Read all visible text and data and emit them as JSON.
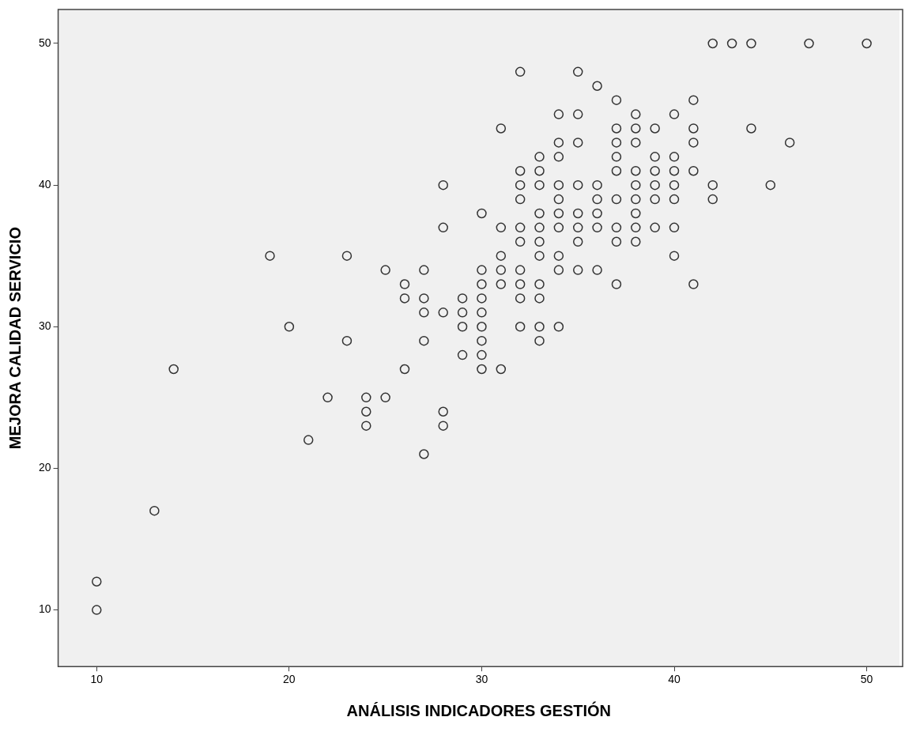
{
  "chart_data": {
    "type": "scatter",
    "xlabel": "ANÁLISIS INDICADORES GESTIÓN",
    "ylabel": "MEJORA CALIDAD SERVICIO",
    "xlim": [
      8,
      51.7
    ],
    "ylim": [
      6,
      52.4
    ],
    "xticks": [
      10,
      20,
      30,
      40,
      50
    ],
    "yticks": [
      10,
      20,
      30,
      40,
      50
    ],
    "grid": false,
    "legend": false,
    "marker": "circle",
    "series": [
      {
        "color": "#333333",
        "x": [
          10,
          10,
          13,
          14,
          19,
          20,
          21,
          22,
          23,
          23,
          24,
          24,
          24,
          25,
          25,
          26,
          26,
          26,
          27,
          27,
          27,
          27,
          27,
          28,
          28,
          28,
          28,
          28,
          29,
          29,
          29,
          29,
          30,
          30,
          30,
          30,
          30,
          30,
          30,
          30,
          30,
          31,
          31,
          31,
          31,
          31,
          31,
          32,
          32,
          32,
          32,
          32,
          32,
          32,
          32,
          32,
          32,
          33,
          33,
          33,
          33,
          33,
          33,
          33,
          33,
          33,
          33,
          33,
          34,
          34,
          34,
          34,
          34,
          34,
          34,
          34,
          34,
          34,
          35,
          35,
          35,
          35,
          35,
          35,
          35,
          35,
          36,
          36,
          36,
          36,
          36,
          36,
          37,
          37,
          37,
          37,
          37,
          37,
          37,
          37,
          37,
          38,
          38,
          38,
          38,
          38,
          38,
          38,
          38,
          38,
          39,
          39,
          39,
          39,
          39,
          39,
          40,
          40,
          40,
          40,
          40,
          40,
          40,
          41,
          41,
          41,
          41,
          41,
          42,
          42,
          42,
          43,
          44,
          44,
          45,
          46,
          47,
          50
        ],
        "values": [
          12,
          10,
          17,
          27,
          35,
          30,
          22,
          25,
          35,
          29,
          25,
          24,
          23,
          34,
          25,
          33,
          32,
          27,
          34,
          32,
          31,
          29,
          21,
          40,
          37,
          31,
          24,
          23,
          32,
          31,
          30,
          28,
          38,
          34,
          33,
          32,
          31,
          30,
          29,
          28,
          27,
          44,
          37,
          35,
          34,
          33,
          27,
          48,
          41,
          40,
          39,
          37,
          36,
          34,
          33,
          32,
          30,
          42,
          41,
          40,
          38,
          37,
          36,
          35,
          33,
          32,
          30,
          29,
          45,
          43,
          42,
          40,
          39,
          38,
          37,
          35,
          34,
          30,
          48,
          45,
          43,
          40,
          38,
          37,
          36,
          34,
          47,
          40,
          39,
          38,
          37,
          34,
          46,
          44,
          43,
          42,
          41,
          39,
          37,
          36,
          33,
          45,
          44,
          43,
          41,
          40,
          39,
          38,
          37,
          36,
          44,
          42,
          41,
          40,
          39,
          37,
          45,
          42,
          41,
          40,
          39,
          37,
          35,
          46,
          44,
          43,
          41,
          33,
          50,
          40,
          39,
          50,
          50,
          44,
          40,
          43,
          50,
          50
        ]
      }
    ]
  }
}
